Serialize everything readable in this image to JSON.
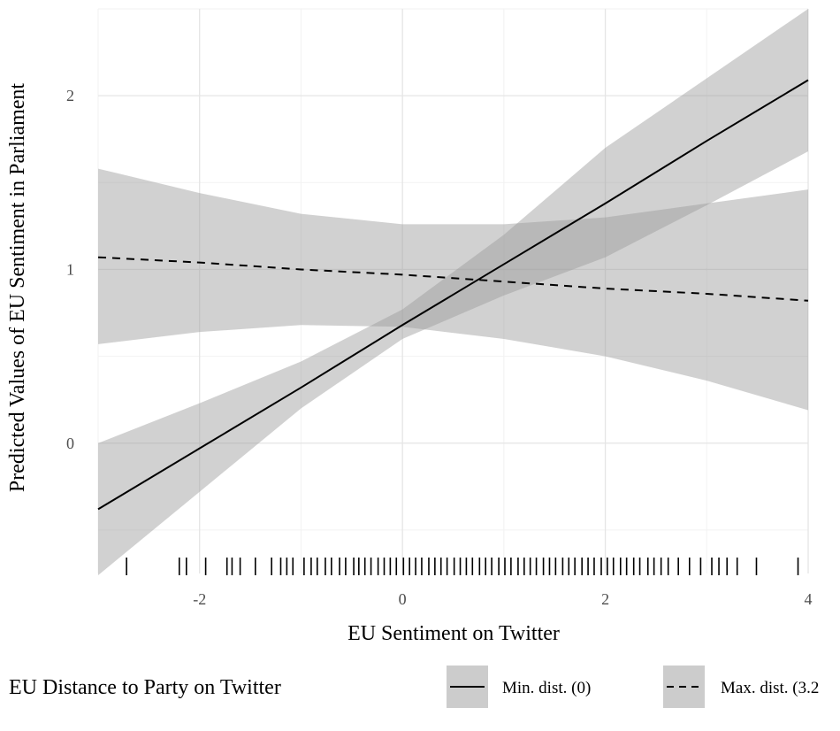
{
  "chart_data": {
    "type": "line",
    "title": "",
    "xlabel": "EU Sentiment on Twitter",
    "ylabel": "Predicted Values of EU Sentiment in Parliament",
    "xlim": [
      -3,
      4
    ],
    "ylim": [
      -0.75,
      2.5
    ],
    "x_ticks": [
      -2,
      0,
      2,
      4
    ],
    "x_tick_labels": [
      "-2",
      "0",
      "2",
      "4"
    ],
    "y_ticks": [
      0,
      1,
      2
    ],
    "y_tick_labels": [
      "0",
      "1",
      "2"
    ],
    "grid": true,
    "legend_position": "bottom",
    "legend_title": "EU Distance to Party on Twitter",
    "series": [
      {
        "name": "Min. dist. (0)",
        "line_style": "solid",
        "x": [
          -3,
          -2,
          -1,
          0,
          1,
          2,
          3,
          4
        ],
        "y": [
          -0.38,
          -0.03,
          0.32,
          0.68,
          1.03,
          1.38,
          1.74,
          2.09
        ],
        "lower": [
          -0.76,
          -0.28,
          0.2,
          0.6,
          0.85,
          1.07,
          1.37,
          1.68
        ],
        "upper": [
          0.0,
          0.23,
          0.47,
          0.77,
          1.2,
          1.7,
          2.1,
          2.5
        ]
      },
      {
        "name": "Max. dist. (3.2",
        "line_style": "dashed",
        "x": [
          -3,
          -2,
          -1,
          0,
          1,
          2,
          3,
          4
        ],
        "y": [
          1.07,
          1.04,
          1.0,
          0.97,
          0.93,
          0.89,
          0.86,
          0.82
        ],
        "lower": [
          0.57,
          0.64,
          0.68,
          0.67,
          0.6,
          0.5,
          0.36,
          0.19
        ],
        "upper": [
          1.58,
          1.44,
          1.32,
          1.26,
          1.26,
          1.3,
          1.38,
          1.46
        ]
      }
    ],
    "rug_x": [
      -2.72,
      -2.2,
      -2.13,
      -1.94,
      -1.73,
      -1.68,
      -1.6,
      -1.45,
      -1.29,
      -1.2,
      -1.14,
      -1.08,
      -0.97,
      -0.9,
      -0.84,
      -0.76,
      -0.7,
      -0.62,
      -0.56,
      -0.48,
      -0.43,
      -0.37,
      -0.31,
      -0.24,
      -0.18,
      -0.12,
      -0.06,
      0.01,
      0.07,
      0.13,
      0.19,
      0.26,
      0.32,
      0.38,
      0.44,
      0.51,
      0.57,
      0.63,
      0.69,
      0.76,
      0.82,
      0.88,
      0.95,
      1.01,
      1.07,
      1.14,
      1.2,
      1.26,
      1.32,
      1.39,
      1.45,
      1.51,
      1.58,
      1.64,
      1.7,
      1.77,
      1.83,
      1.89,
      1.96,
      2.02,
      2.08,
      2.15,
      2.21,
      2.28,
      2.34,
      2.42,
      2.48,
      2.55,
      2.62,
      2.72,
      2.83,
      2.94,
      3.05,
      3.12,
      3.2,
      3.3,
      3.49,
      3.9
    ]
  }
}
